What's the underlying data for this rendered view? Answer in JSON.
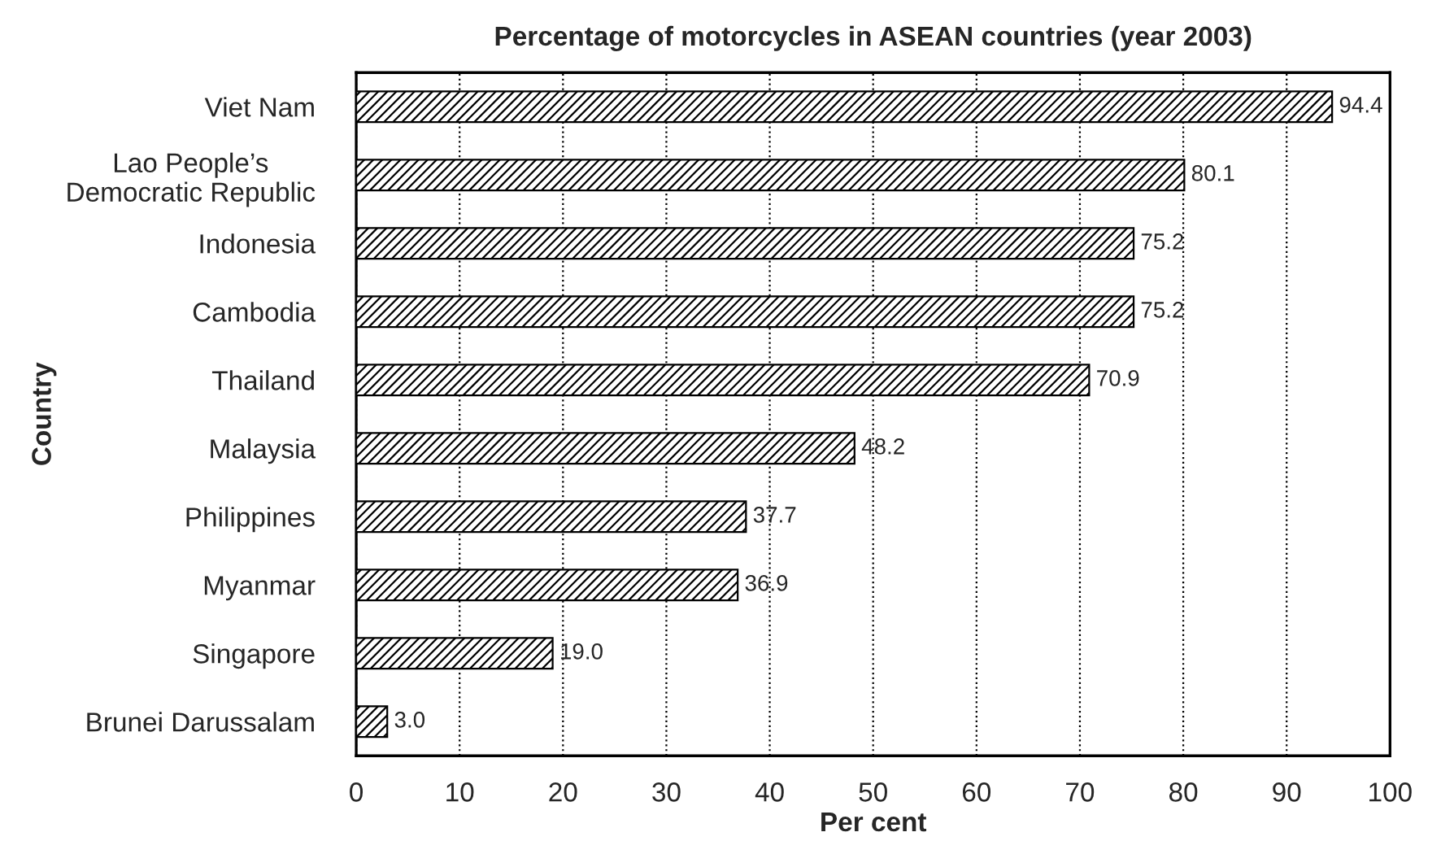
{
  "chart_data": {
    "type": "bar",
    "orientation": "horizontal",
    "title": "Percentage of motorcycles in ASEAN countries (year 2003)",
    "xlabel": "Per cent",
    "ylabel": "Country",
    "categories": [
      "Viet Nam",
      "Lao People’s\nDemocratic Republic",
      "Indonesia",
      "Cambodia",
      "Thailand",
      "Malaysia",
      "Philippines",
      "Myanmar",
      "Singapore",
      "Brunei Darussalam"
    ],
    "values": [
      94.4,
      80.1,
      75.2,
      75.2,
      70.9,
      48.2,
      37.7,
      36.9,
      19.0,
      3.0
    ],
    "value_labels": [
      "94.4",
      "80.1",
      "75.2",
      "75.2",
      "70.9",
      "48.2",
      "37.7",
      "36.9",
      "19.0",
      "3.0"
    ],
    "color": "#000000",
    "xlim": [
      0,
      100
    ],
    "xticks": [
      0,
      10,
      20,
      30,
      40,
      50,
      60,
      70,
      80,
      90,
      100
    ],
    "grid": "x",
    "legend": false
  }
}
